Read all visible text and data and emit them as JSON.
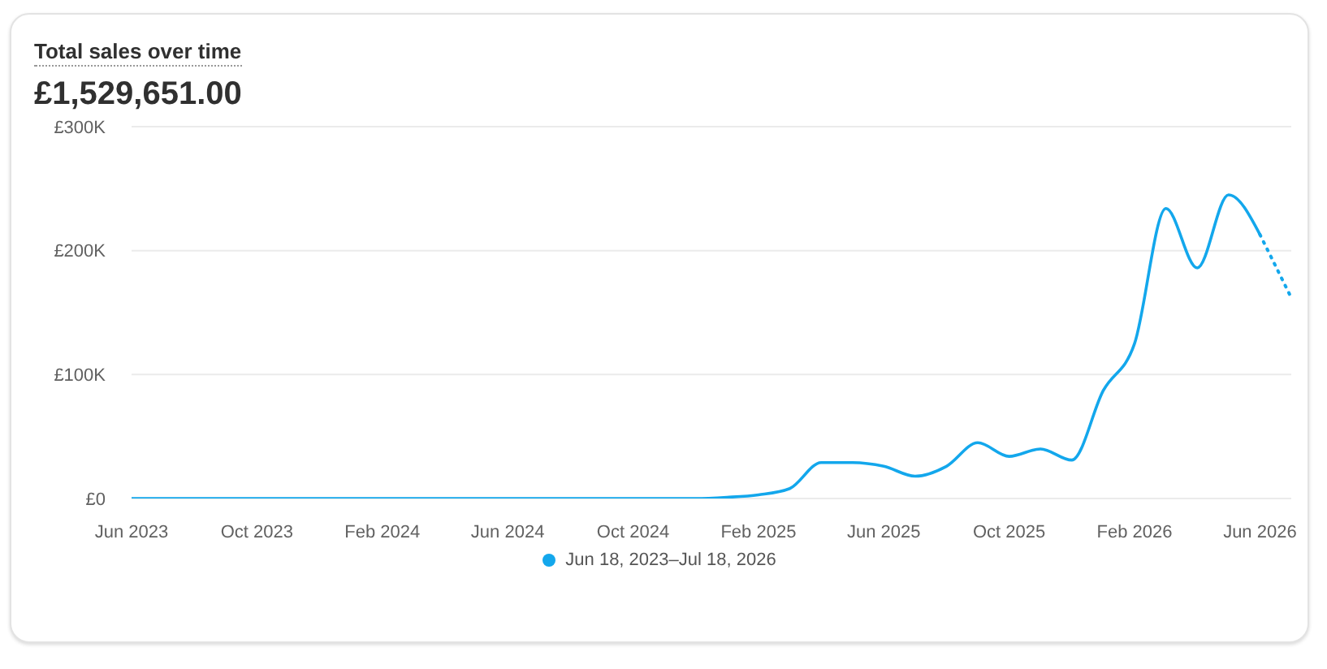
{
  "chart_data": {
    "type": "line",
    "title": "Total sales over time",
    "subtitle": "£1,529,651.00",
    "x": [
      "2023-06",
      "2023-07",
      "2023-08",
      "2023-09",
      "2023-10",
      "2023-11",
      "2023-12",
      "2024-01",
      "2024-02",
      "2024-03",
      "2024-04",
      "2024-05",
      "2024-06",
      "2024-07",
      "2024-08",
      "2024-09",
      "2024-10",
      "2024-11",
      "2024-12",
      "2025-01",
      "2025-02",
      "2025-03",
      "2025-04",
      "2025-05",
      "2025-06",
      "2025-07",
      "2025-08",
      "2025-09",
      "2025-10",
      "2025-11",
      "2025-12",
      "2026-01",
      "2026-02",
      "2026-03",
      "2026-04",
      "2026-05",
      "2026-06",
      "2026-07"
    ],
    "series": [
      {
        "name": "Jun 18, 2023–Jul 18, 2026",
        "color": "#13a7ec",
        "line_style": "solid",
        "values": [
          0,
          0,
          0,
          0,
          0,
          0,
          0,
          0,
          0,
          0,
          0,
          0,
          0,
          0,
          0,
          0,
          0,
          0,
          0,
          1000,
          3000,
          8000,
          29000,
          29000,
          26000,
          18000,
          26000,
          45000,
          34000,
          40000,
          31000,
          87000,
          125000,
          234000,
          186000,
          245000,
          213000,
          null
        ]
      },
      {
        "color": "#13a7ec",
        "line_style": "dotted",
        "values": [
          null,
          null,
          null,
          null,
          null,
          null,
          null,
          null,
          null,
          null,
          null,
          null,
          null,
          null,
          null,
          null,
          null,
          null,
          null,
          null,
          null,
          null,
          null,
          null,
          null,
          null,
          null,
          null,
          null,
          null,
          null,
          null,
          null,
          null,
          null,
          null,
          213000,
          162000
        ]
      }
    ],
    "xlim": [
      "2023-06",
      "2026-07"
    ],
    "xticks": [
      {
        "value": "2023-06",
        "label": "Jun 2023"
      },
      {
        "value": "2023-10",
        "label": "Oct 2023"
      },
      {
        "value": "2024-02",
        "label": "Feb 2024"
      },
      {
        "value": "2024-06",
        "label": "Jun 2024"
      },
      {
        "value": "2024-10",
        "label": "Oct 2024"
      },
      {
        "value": "2025-02",
        "label": "Feb 2025"
      },
      {
        "value": "2025-06",
        "label": "Jun 2025"
      },
      {
        "value": "2025-10",
        "label": "Oct 2025"
      },
      {
        "value": "2026-02",
        "label": "Feb 2026"
      },
      {
        "value": "2026-06",
        "label": "Jun 2026"
      }
    ],
    "ylim": [
      0,
      300000
    ],
    "yticks": [
      {
        "value": 0,
        "label": "£0"
      },
      {
        "value": 100000,
        "label": "£100K"
      },
      {
        "value": 200000,
        "label": "£200K"
      },
      {
        "value": 300000,
        "label": "£300K"
      }
    ],
    "grid": "y",
    "legend": "bottom",
    "marker": "none"
  }
}
